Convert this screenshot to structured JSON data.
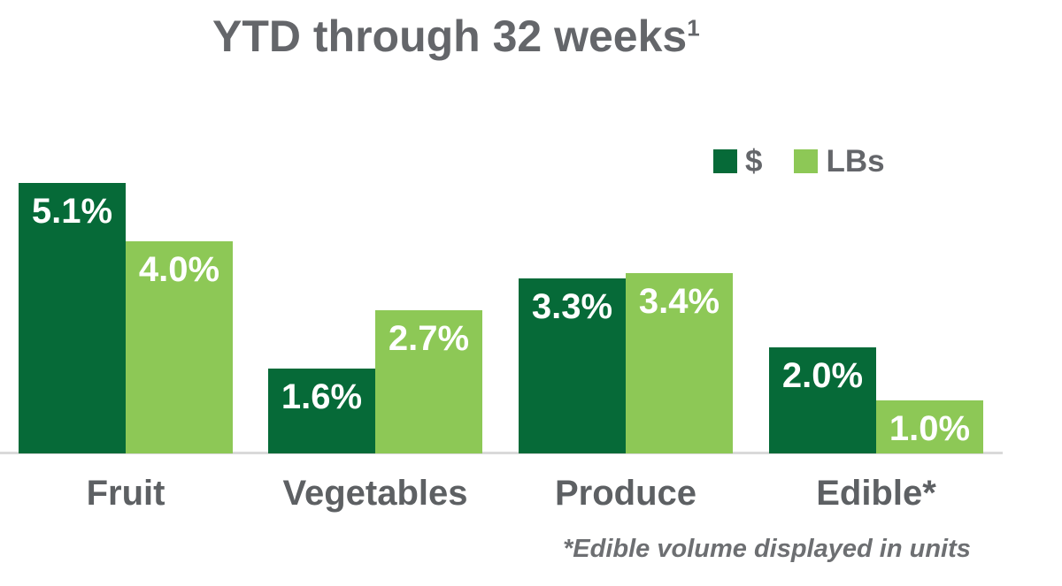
{
  "title": {
    "text": "YTD through 32 weeks",
    "superscript": "1"
  },
  "legend": {
    "items": [
      {
        "label": "$",
        "color": "#066a38"
      },
      {
        "label": "LBs",
        "color": "#8dc856"
      }
    ]
  },
  "chart_data": {
    "type": "bar",
    "title": "YTD through 32 weeks¹",
    "categories": [
      "Fruit",
      "Vegetables",
      "Produce",
      "Edible*"
    ],
    "series": [
      {
        "name": "$",
        "color": "#066a38",
        "values": [
          5.1,
          1.6,
          3.3,
          2.0
        ],
        "labels": [
          "5.1%",
          "1.6%",
          "3.3%",
          "2.0%"
        ]
      },
      {
        "name": "LBs",
        "color": "#8dc856",
        "values": [
          4.0,
          2.7,
          3.4,
          1.0
        ],
        "labels": [
          "4.0%",
          "2.7%",
          "3.4%",
          "1.0%"
        ]
      }
    ],
    "xlabel": "",
    "ylabel": "",
    "ylim": [
      0,
      5.5
    ],
    "grid": false,
    "legend_position": "top-right",
    "value_label_color": "#ffffff",
    "axis_line_color": "#d9d9d9"
  },
  "footnote": {
    "text": "*Edible volume displayed in units"
  }
}
